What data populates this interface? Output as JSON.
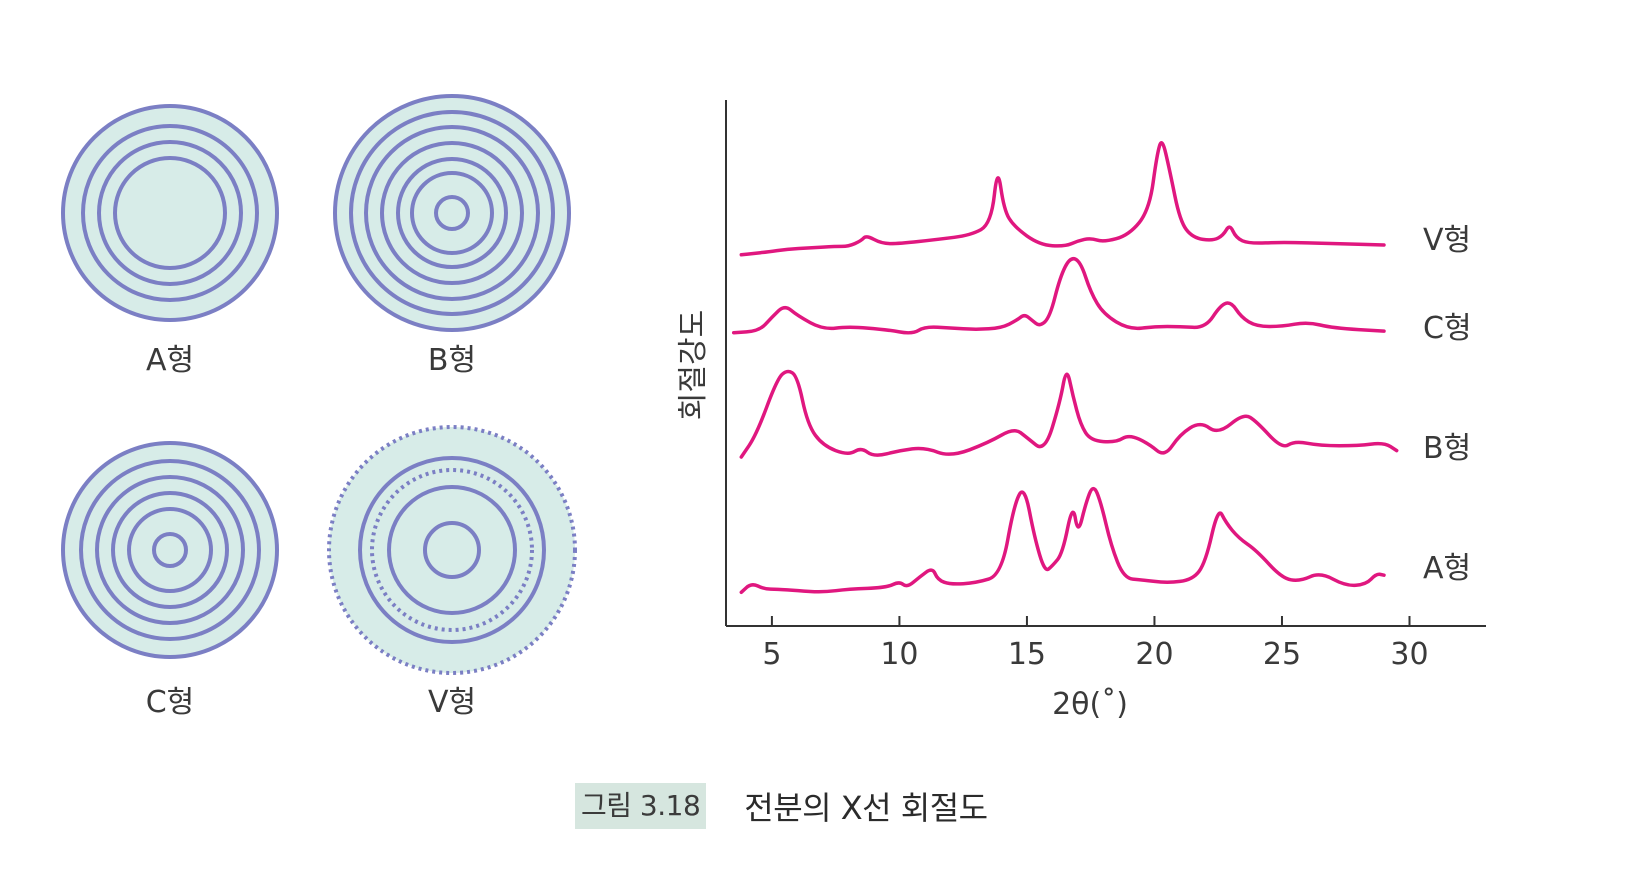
{
  "patterns": [
    {
      "label": "A형"
    },
    {
      "label": "B형"
    },
    {
      "label": "C형"
    },
    {
      "label": "V형"
    }
  ],
  "chart_data": {
    "type": "line",
    "title": "",
    "xlabel": "2θ(˚)",
    "ylabel": "회절강도",
    "xlim": [
      3.2,
      33
    ],
    "xticks": [
      5,
      10,
      15,
      20,
      25,
      30
    ],
    "xtick_labels": [
      "5",
      "10",
      "15",
      "20",
      "25",
      "30"
    ],
    "y_values_note": "relative intensity, arbitrary units, stacked traces",
    "series": [
      {
        "name": "V형",
        "x": [
          3.8,
          4.3,
          4.8,
          5.6,
          6.5,
          7.5,
          8.0,
          8.5,
          8.7,
          9.3,
          10.0,
          11.5,
          12.8,
          13.6,
          13.85,
          14.1,
          14.5,
          15.5,
          16.5,
          17.0,
          17.5,
          18.0,
          19.0,
          19.8,
          20.1,
          20.3,
          20.6,
          21.0,
          21.5,
          22.3,
          22.7,
          22.95,
          23.2,
          23.7,
          25.0,
          27.0,
          29.0
        ],
        "y": [
          8,
          9,
          10,
          12,
          13,
          14,
          14,
          18,
          22,
          16,
          16,
          19,
          22,
          30,
          72,
          40,
          28,
          15,
          14,
          18,
          20,
          17,
          22,
          40,
          80,
          92,
          68,
          32,
          20,
          18,
          22,
          30,
          20,
          16,
          17,
          16,
          15
        ]
      },
      {
        "name": "C형",
        "x": [
          3.5,
          4.5,
          5.0,
          5.5,
          6.0,
          7.0,
          8.0,
          9.5,
          10.5,
          11.0,
          12.0,
          13.0,
          14.0,
          14.6,
          14.9,
          15.2,
          15.5,
          15.9,
          16.3,
          16.7,
          17.1,
          17.5,
          18.0,
          19.0,
          20.0,
          21.0,
          22.0,
          22.6,
          23.0,
          23.4,
          24.0,
          25.0,
          26.0,
          27.0,
          29.0
        ],
        "y": [
          6,
          7,
          16,
          24,
          17,
          8,
          10,
          8,
          5,
          10,
          9,
          8,
          9,
          14,
          18,
          14,
          10,
          16,
          42,
          55,
          52,
          32,
          18,
          8,
          10,
          10,
          9,
          24,
          26,
          16,
          10,
          10,
          13,
          9,
          7
        ]
      },
      {
        "name": "B형",
        "x": [
          3.8,
          4.4,
          5.2,
          5.6,
          6.0,
          6.4,
          7.0,
          8.0,
          8.5,
          9.0,
          10.0,
          11.0,
          12.0,
          13.5,
          14.5,
          15.0,
          15.7,
          16.3,
          16.55,
          16.8,
          17.1,
          17.5,
          18.5,
          19.0,
          19.8,
          20.4,
          21.0,
          21.8,
          22.5,
          23.5,
          24.0,
          25.0,
          25.5,
          26.5,
          28.0,
          29.0,
          29.5
        ],
        "y": [
          8,
          22,
          56,
          62,
          58,
          28,
          15,
          9,
          14,
          8,
          12,
          14,
          8,
          17,
          26,
          20,
          11,
          42,
          64,
          46,
          28,
          18,
          17,
          22,
          16,
          8,
          22,
          30,
          22,
          35,
          30,
          13,
          18,
          15,
          15,
          17,
          12
        ]
      },
      {
        "name": "A형",
        "x": [
          3.8,
          4.2,
          4.7,
          5.2,
          6.0,
          7.0,
          8.0,
          9.5,
          10.0,
          10.3,
          10.8,
          11.3,
          11.5,
          12.0,
          13.0,
          14.0,
          14.5,
          14.9,
          15.3,
          15.7,
          16.0,
          16.4,
          16.8,
          17.0,
          17.3,
          17.6,
          17.9,
          18.3,
          18.8,
          19.5,
          20.5,
          21.5,
          22.0,
          22.5,
          22.8,
          23.3,
          24.0,
          25.0,
          25.7,
          26.5,
          27.5,
          28.3,
          28.7,
          29.0
        ],
        "y": [
          5,
          11,
          7,
          7,
          6,
          5,
          7,
          8,
          12,
          8,
          15,
          21,
          13,
          10,
          11,
          16,
          62,
          74,
          40,
          18,
          22,
          30,
          63,
          42,
          62,
          75,
          63,
          35,
          14,
          13,
          11,
          13,
          24,
          60,
          50,
          40,
          32,
          14,
          12,
          18,
          9,
          10,
          17,
          16
        ]
      }
    ]
  },
  "caption": {
    "label": "그림 3.18",
    "text": "전분의 X선 회절도"
  }
}
